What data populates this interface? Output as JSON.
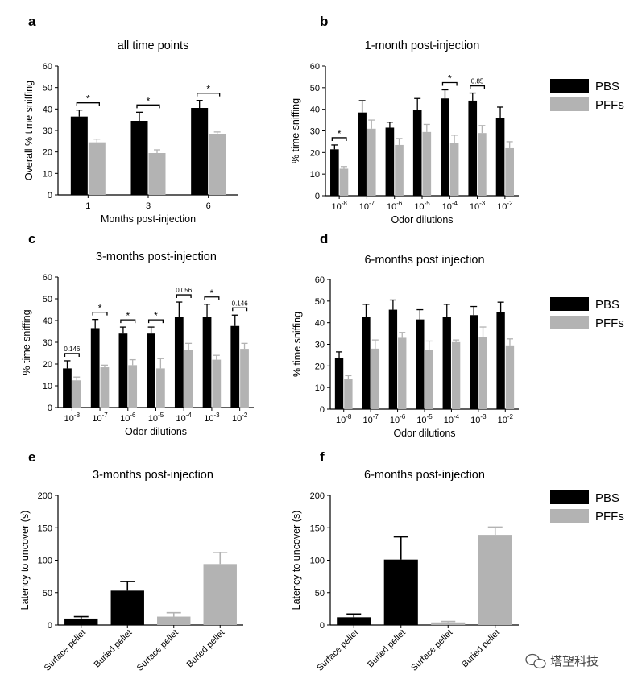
{
  "figure": {
    "legend_pbs": "PBS",
    "legend_pffs": "PFFs",
    "watermark": "塔望科技",
    "colors": {
      "pbs": "#000000",
      "pffs": "#b3b3b3",
      "axis": "#000000"
    }
  },
  "chart_data": [
    {
      "id": "a",
      "panel_label": "a",
      "type": "bar",
      "title": "all time points",
      "xlabel": "Months post-injection",
      "ylabel": "Overall % time sniffing",
      "ylim": [
        0,
        60
      ],
      "yticks": [
        0,
        10,
        20,
        30,
        40,
        50,
        60
      ],
      "categories": [
        "1",
        "3",
        "6"
      ],
      "series": [
        {
          "name": "PBS",
          "values": [
            36.5,
            34.5,
            40.5
          ],
          "errors": [
            3,
            4,
            3.5
          ]
        },
        {
          "name": "PFFs",
          "values": [
            24.5,
            19.5,
            28.5
          ],
          "errors": [
            1.5,
            1.5,
            0.8
          ]
        }
      ],
      "annotations": [
        {
          "category_index": 0,
          "text": "*"
        },
        {
          "category_index": 1,
          "text": "*"
        },
        {
          "category_index": 2,
          "text": "*"
        }
      ]
    },
    {
      "id": "b",
      "panel_label": "b",
      "type": "bar",
      "title": "1-month post-injection",
      "xlabel": "Odor dilutions",
      "ylabel": "% time sniffing",
      "ylim": [
        0,
        60
      ],
      "yticks": [
        0,
        10,
        20,
        30,
        40,
        50,
        60
      ],
      "categories": [
        "10-8",
        "10-7",
        "10-6",
        "10-5",
        "10-4",
        "10-3",
        "10-2"
      ],
      "category_exponents": [
        "-8",
        "-7",
        "-6",
        "-5",
        "-4",
        "-3",
        "-2"
      ],
      "series": [
        {
          "name": "PBS",
          "values": [
            21.5,
            38.5,
            31.5,
            39.5,
            45,
            44,
            36
          ],
          "errors": [
            2,
            5.5,
            2.5,
            5.5,
            4,
            3.5,
            5
          ]
        },
        {
          "name": "PFFs",
          "values": [
            12.5,
            31,
            23.5,
            29.5,
            24.5,
            29,
            22
          ],
          "errors": [
            1,
            4,
            3,
            3.5,
            3.5,
            3.5,
            3
          ]
        }
      ],
      "annotations": [
        {
          "category_index": 0,
          "text": "*"
        },
        {
          "category_index": 4,
          "text": "*"
        },
        {
          "category_index": 5,
          "text": "0.85"
        }
      ]
    },
    {
      "id": "c",
      "panel_label": "c",
      "type": "bar",
      "title": "3-months post-injection",
      "xlabel": "Odor dilutions",
      "ylabel": "% time sniffing",
      "ylim": [
        0,
        60
      ],
      "yticks": [
        0,
        10,
        20,
        30,
        40,
        50,
        60
      ],
      "categories": [
        "10-8",
        "10-7",
        "10-6",
        "10-5",
        "10-4",
        "10-3",
        "10-2"
      ],
      "category_exponents": [
        "-8",
        "-7",
        "-6",
        "-5",
        "-4",
        "-3",
        "-2"
      ],
      "series": [
        {
          "name": "PBS",
          "values": [
            18,
            36.5,
            34,
            34,
            41.5,
            41.5,
            37.5
          ],
          "errors": [
            3.5,
            4,
            3,
            3,
            7,
            6,
            5
          ]
        },
        {
          "name": "PFFs",
          "values": [
            12.5,
            18.5,
            19.5,
            18,
            26.5,
            22,
            27
          ],
          "errors": [
            1.5,
            1,
            2.5,
            4.5,
            3,
            2,
            2.5
          ]
        }
      ],
      "annotations": [
        {
          "category_index": 0,
          "text": "0.146"
        },
        {
          "category_index": 1,
          "text": "*"
        },
        {
          "category_index": 2,
          "text": "*"
        },
        {
          "category_index": 3,
          "text": "*"
        },
        {
          "category_index": 4,
          "text": "0.056"
        },
        {
          "category_index": 5,
          "text": "*"
        },
        {
          "category_index": 6,
          "text": "0.146"
        }
      ]
    },
    {
      "id": "d",
      "panel_label": "d",
      "type": "bar",
      "title": "6-months post injection",
      "xlabel": "Odor dilutions",
      "ylabel": "% time sniffing",
      "ylim": [
        0,
        60
      ],
      "yticks": [
        0,
        10,
        20,
        30,
        40,
        50,
        60
      ],
      "categories": [
        "10-8",
        "10-7",
        "10-6",
        "10-5",
        "10-4",
        "10-3",
        "10-2"
      ],
      "category_exponents": [
        "-8",
        "-7",
        "-6",
        "-5",
        "-4",
        "-3",
        "-2"
      ],
      "series": [
        {
          "name": "PBS",
          "values": [
            23.5,
            42.5,
            46,
            41.5,
            42.5,
            43.5,
            45
          ],
          "errors": [
            3,
            6,
            4.5,
            4.5,
            6,
            4,
            4.5
          ]
        },
        {
          "name": "PFFs",
          "values": [
            14,
            28,
            33,
            27.5,
            31,
            33.5,
            29.5
          ],
          "errors": [
            1.5,
            4,
            2.5,
            4,
            1,
            4.5,
            3
          ]
        }
      ],
      "annotations": []
    },
    {
      "id": "e",
      "panel_label": "e",
      "type": "bar",
      "title": "3-months post-injection",
      "xlabel": "",
      "ylabel": "Latency to uncover (s)",
      "ylim": [
        0,
        200
      ],
      "yticks": [
        0,
        50,
        100,
        150,
        200
      ],
      "categories": [
        "Surface pellet",
        "Buried pellet",
        "Surface pellet",
        "Buried pellet"
      ],
      "bar_groups": [
        "PBS",
        "PBS",
        "PFFs",
        "PFFs"
      ],
      "values": [
        10,
        53,
        13,
        94
      ],
      "errors": [
        3,
        14,
        6,
        18
      ],
      "annotations": []
    },
    {
      "id": "f",
      "panel_label": "f",
      "type": "bar",
      "title": "6-months post-injection",
      "xlabel": "",
      "ylabel": "Latency to uncover (s)",
      "ylim": [
        0,
        200
      ],
      "yticks": [
        0,
        50,
        100,
        150,
        200
      ],
      "categories": [
        "Surface pellet",
        "Buried pellet",
        "Surface pellet",
        "Buried pellet"
      ],
      "bar_groups": [
        "PBS",
        "PBS",
        "PFFs",
        "PFFs"
      ],
      "values": [
        12,
        101,
        4,
        139
      ],
      "errors": [
        5,
        35,
        1.5,
        12
      ],
      "annotations": []
    }
  ]
}
